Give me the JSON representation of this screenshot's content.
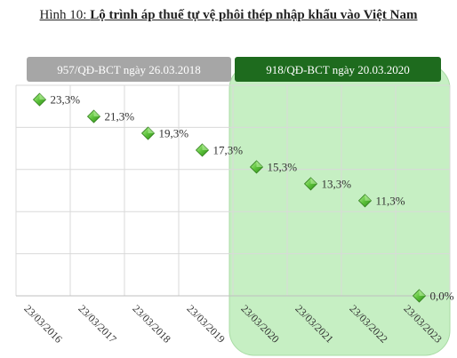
{
  "figure": {
    "prefix": "Hình 10: ",
    "title": "Lộ trình áp thuế tự vệ phôi thép nhập khẩu vào Việt Nam"
  },
  "colors": {
    "phase1_band": "#a6a6a6",
    "phase2_band": "#1e6b1e",
    "phase2_area": "#c6efc3",
    "marker": "#5cc23a",
    "grid": "#d9d9d9"
  },
  "chart_data": {
    "type": "scatter",
    "categories": [
      "23/03/2016",
      "23/03/2017",
      "23/03/2018",
      "23/03/2019",
      "23/03/2020",
      "23/03/2021",
      "23/03/2022",
      "23/03/2023"
    ],
    "series": [
      {
        "values": [
          23.3,
          21.3,
          19.3,
          17.3,
          15.3,
          13.3,
          11.3,
          0.0
        ],
        "labels": [
          "23,3%",
          "21,3%",
          "19,3%",
          "17,3%",
          "15,3%",
          "13,3%",
          "11,3%",
          "0,0%"
        ]
      }
    ],
    "ylim": [
      0,
      25
    ],
    "grid": true,
    "phases": [
      {
        "label": "957/QĐ-BCT ngày 26.03.2018",
        "from_index": 0,
        "to_index": 3
      },
      {
        "label": "918/QĐ-BCT ngày 20.03.2020",
        "from_index": 4,
        "to_index": 7
      }
    ]
  }
}
